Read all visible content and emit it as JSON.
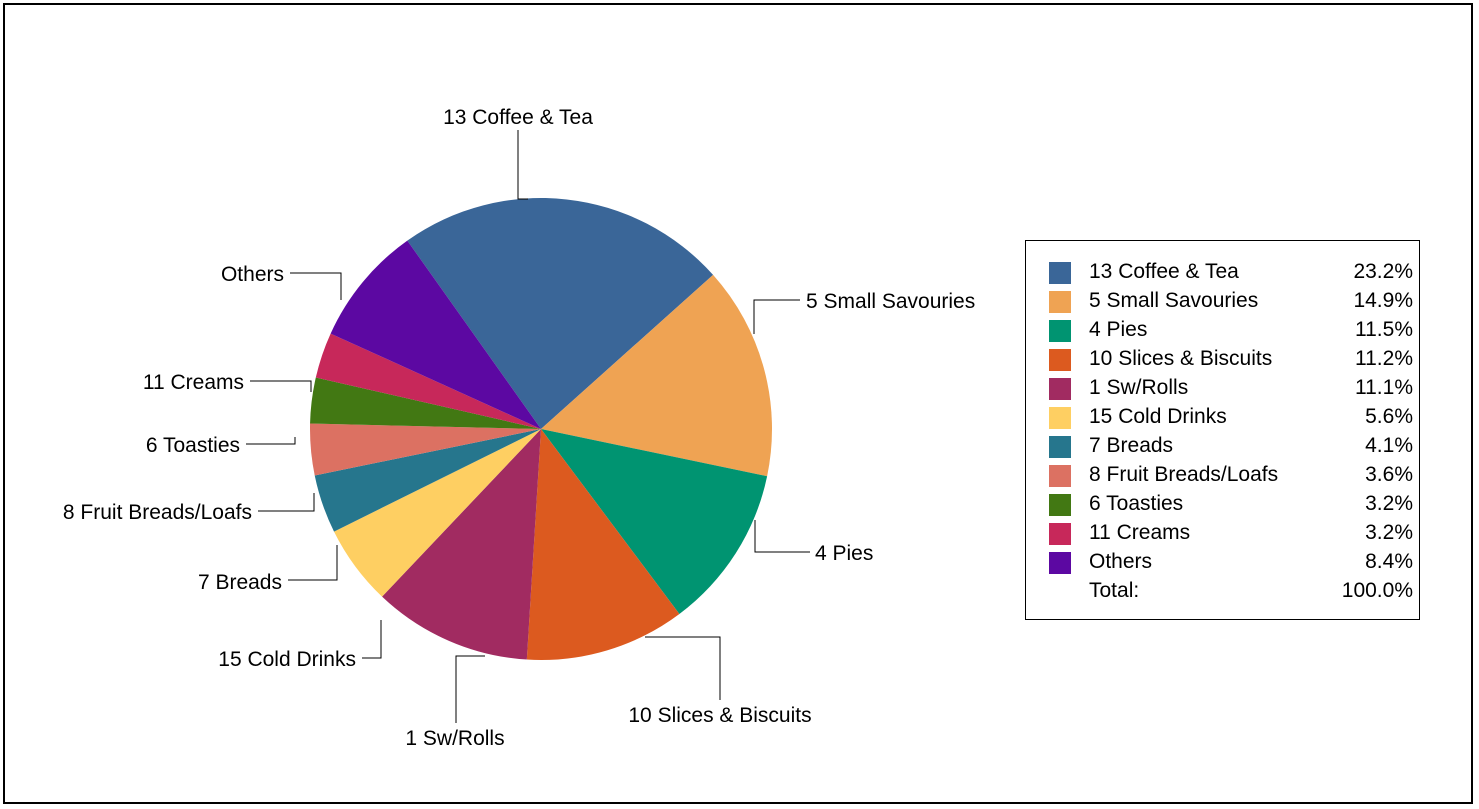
{
  "chart_data": {
    "type": "pie",
    "title": "",
    "slices": [
      {
        "label": "13 Coffee & Tea",
        "value": 23.2,
        "pct_text": "23.2%",
        "color": "#3a6698"
      },
      {
        "label": "5 Small Savouries",
        "value": 14.9,
        "pct_text": "14.9%",
        "color": "#efa353"
      },
      {
        "label": "4 Pies",
        "value": 11.5,
        "pct_text": "11.5%",
        "color": "#009471"
      },
      {
        "label": "10 Slices & Biscuits",
        "value": 11.2,
        "pct_text": "11.2%",
        "color": "#dc5a1f"
      },
      {
        "label": "1 Sw/Rolls",
        "value": 11.1,
        "pct_text": "11.1%",
        "color": "#a12b61"
      },
      {
        "label": "15 Cold Drinks",
        "value": 5.6,
        "pct_text": "5.6%",
        "color": "#fecf62"
      },
      {
        "label": "7 Breads",
        "value": 4.1,
        "pct_text": "4.1%",
        "color": "#26768d"
      },
      {
        "label": "8 Fruit Breads/Loafs",
        "value": 3.6,
        "pct_text": "3.6%",
        "color": "#dc7162"
      },
      {
        "label": "6 Toasties",
        "value": 3.2,
        "pct_text": "3.2%",
        "color": "#427813"
      },
      {
        "label": "11 Creams",
        "value": 3.2,
        "pct_text": "3.2%",
        "color": "#c7285a"
      },
      {
        "label": "Others",
        "value": 8.4,
        "pct_text": "8.4%",
        "color": "#5c08a2"
      }
    ],
    "legend": {
      "placement": "right",
      "total_label": "Total:",
      "total_value": "100.0%"
    }
  }
}
